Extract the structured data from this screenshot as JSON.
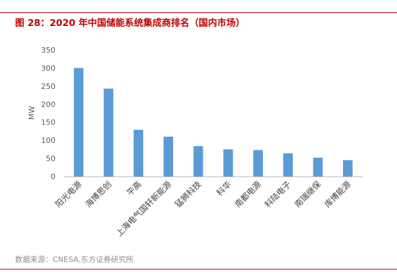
{
  "figure": {
    "title": "图 28：2020 年中国储能系统集成商排名（国内市场）",
    "source": "数据来源：CNESA,东方证券研究所"
  },
  "chart_data": {
    "type": "bar",
    "categories": [
      "阳光电源",
      "海博思创",
      "平高",
      "上海电气国轩新能源",
      "猛狮科技",
      "科华",
      "南都电源",
      "科陆电子",
      "南瑞继保",
      "库博能源"
    ],
    "values": [
      300,
      243,
      129,
      110,
      84,
      75,
      73,
      64,
      52,
      45
    ],
    "title": "",
    "xlabel": "",
    "ylabel": "MW",
    "ylim": [
      0,
      350
    ],
    "yticks": [
      0,
      50,
      100,
      150,
      200,
      250,
      300,
      350
    ],
    "grid": false,
    "legend": "none",
    "bar_color": "#5b9bd5"
  }
}
